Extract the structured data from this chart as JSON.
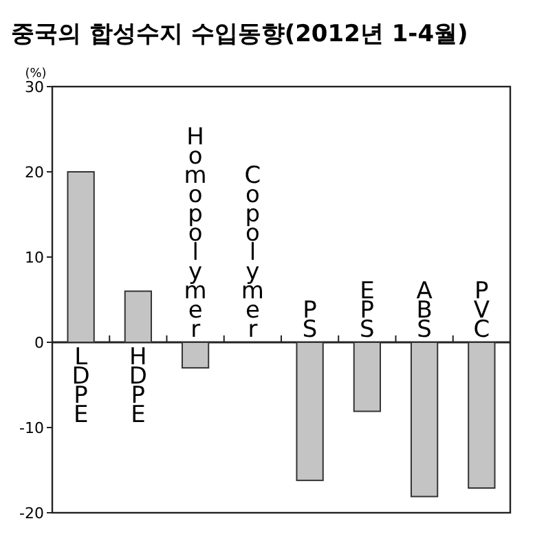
{
  "chart_data": {
    "type": "bar",
    "title": "중국의 합성수지 수입동향(2012년 1-4월)",
    "ylabel": "(%)",
    "categories": [
      "LDPE",
      "HDPE",
      "Homopolymer",
      "Copolymer",
      "PS",
      "EPS",
      "ABS",
      "PVC"
    ],
    "values": [
      20,
      6,
      -3,
      0,
      -16.2,
      -8.1,
      -18.1,
      -17.1
    ],
    "color": "#c4c4c4",
    "ylim": [
      -20,
      30
    ],
    "yticks": [
      -20,
      -10,
      0,
      10,
      20,
      30
    ],
    "grid": false
  }
}
